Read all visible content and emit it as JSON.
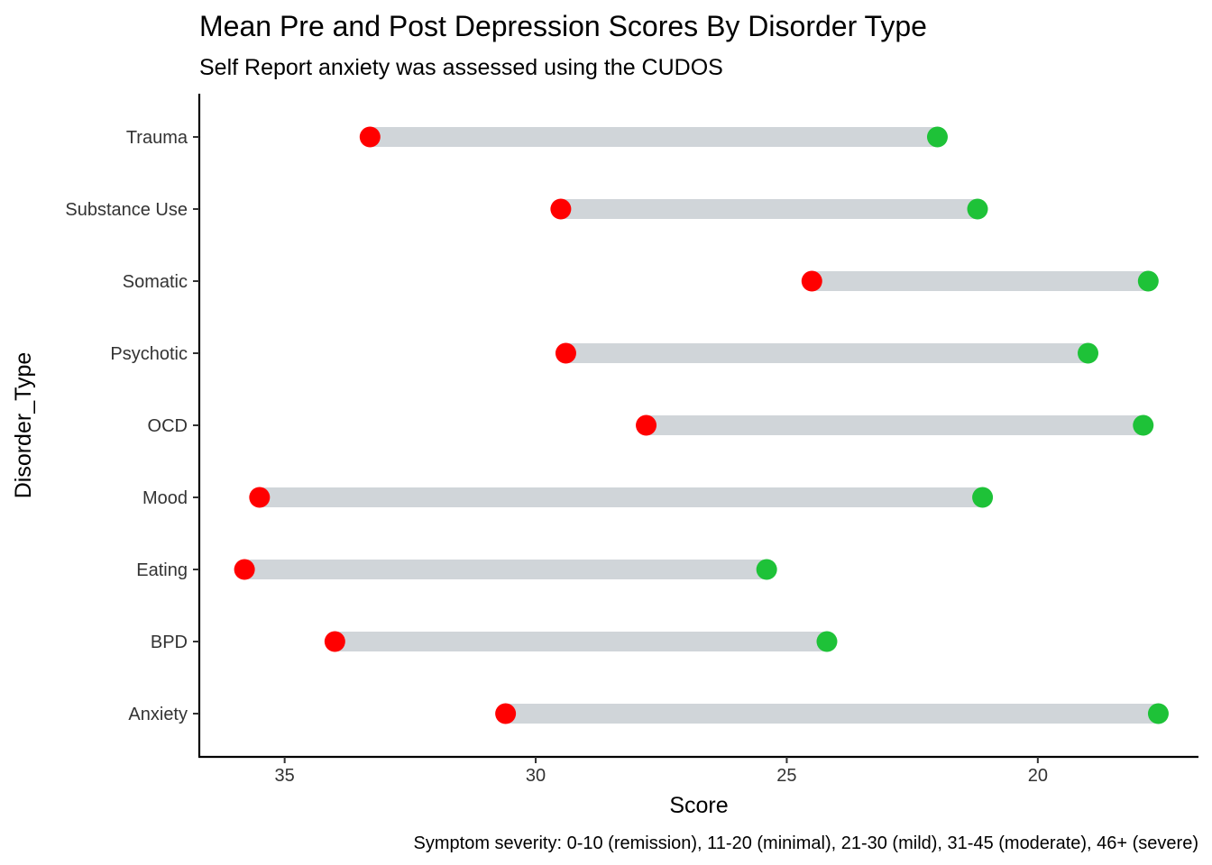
{
  "chart_data": {
    "type": "dumbbell",
    "title": "Mean Pre and Post Depression Scores By Disorder Type",
    "subtitle": "Self Report anxiety was assessed using the CUDOS",
    "xlabel": "Score",
    "ylabel": "Disorder_Type",
    "caption": "Symptom severity: 0-10 (remission), 11-20 (minimal), 21-30 (mild), 31-45 (moderate), 46+ (severe)",
    "x_reversed": true,
    "xlim": [
      36.7,
      16.8
    ],
    "x_ticks": [
      35,
      30,
      25,
      20
    ],
    "grid": false,
    "legend": "none",
    "categories": [
      "Anxiety",
      "BPD",
      "Eating",
      "Mood",
      "OCD",
      "Psychotic",
      "Somatic",
      "Substance Use",
      "Trauma"
    ],
    "series": [
      {
        "values": [
          30.6,
          34.0,
          35.8,
          35.5,
          27.8,
          29.4,
          24.5,
          29.5,
          33.3
        ],
        "color": "#ff0000"
      },
      {
        "values": [
          17.6,
          24.2,
          25.4,
          21.1,
          17.9,
          19.0,
          17.8,
          21.2,
          22.0
        ],
        "color": "#1ec238"
      }
    ],
    "segment_color": "#d0d5d9"
  }
}
